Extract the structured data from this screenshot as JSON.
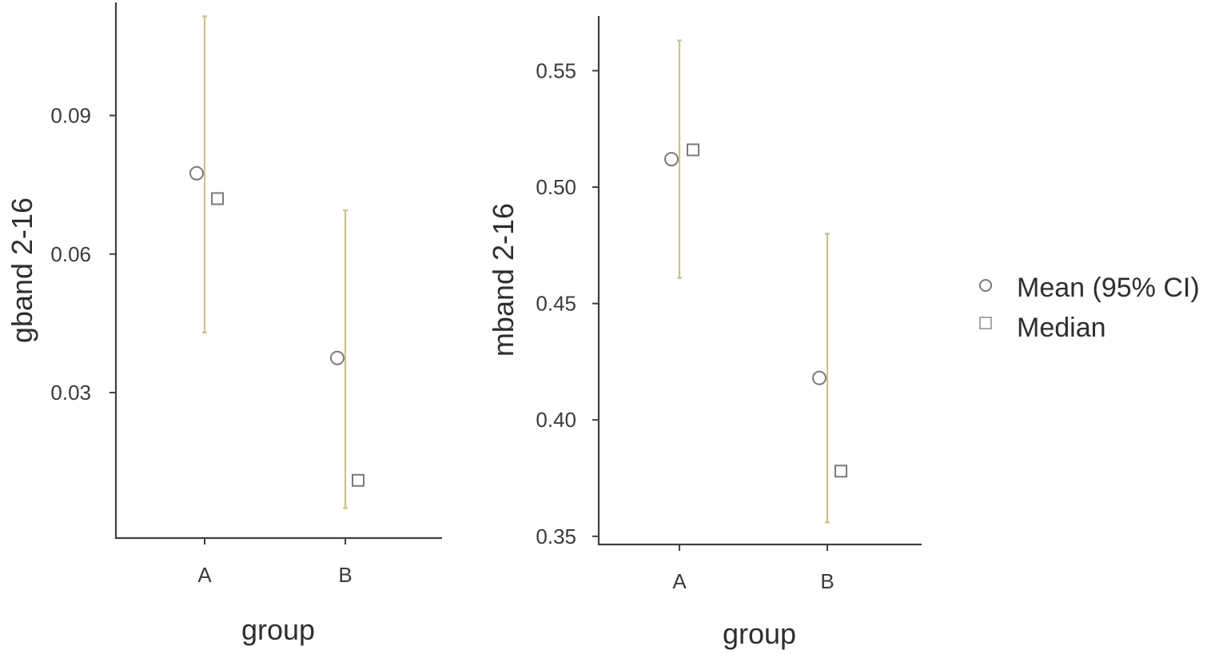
{
  "colors": {
    "errorbar": "#c9c48a",
    "marker_stroke": "#7a7a7a",
    "axis": "#404040"
  },
  "legend": {
    "position": "right",
    "items": [
      {
        "label": "Mean (95% CI)",
        "icon": "circle-marker-icon"
      },
      {
        "label": "Median",
        "icon": "square-marker-icon"
      }
    ]
  },
  "chart_data": [
    {
      "type": "scatter",
      "xlabel": "group",
      "ylabel": "gband 2-16",
      "categories": [
        "A",
        "B"
      ],
      "ylim": [
        -0.0015,
        0.1145
      ],
      "yticks": [
        0.03,
        0.06,
        0.09
      ],
      "ytick_labels": [
        "0.03",
        "0.06",
        "0.09"
      ],
      "mean": [
        0.0775,
        0.0375
      ],
      "ci_lower": [
        0.043,
        0.005
      ],
      "ci_upper": [
        0.1115,
        0.0695
      ],
      "median": [
        0.072,
        0.011
      ],
      "grid": false
    },
    {
      "type": "scatter",
      "xlabel": "group",
      "ylabel": "mband 2-16",
      "categories": [
        "A",
        "B"
      ],
      "ylim": [
        0.3465,
        0.5735
      ],
      "yticks": [
        0.35,
        0.4,
        0.45,
        0.5,
        0.55
      ],
      "ytick_labels": [
        "0.35",
        "0.40",
        "0.45",
        "0.50",
        "0.55"
      ],
      "mean": [
        0.512,
        0.418
      ],
      "ci_lower": [
        0.461,
        0.356
      ],
      "ci_upper": [
        0.563,
        0.48
      ],
      "median": [
        0.516,
        0.378
      ],
      "grid": false
    }
  ]
}
